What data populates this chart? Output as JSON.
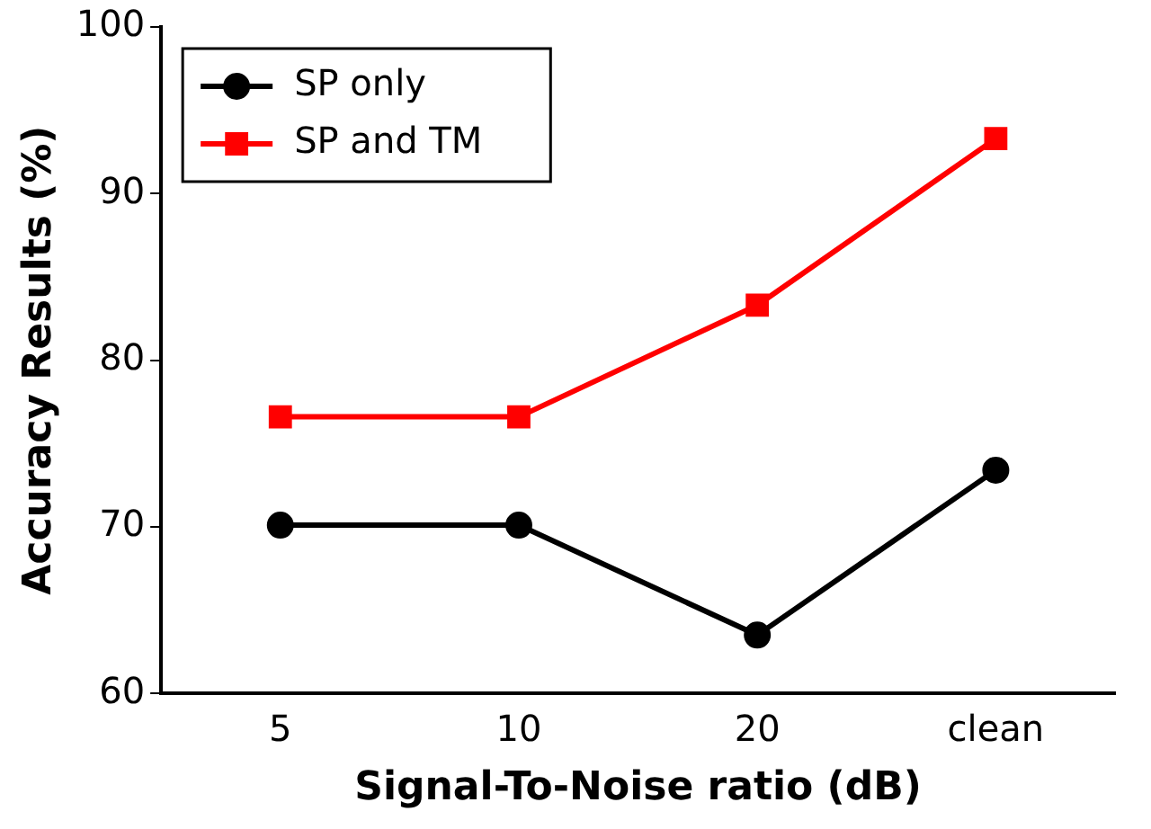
{
  "chart_data": {
    "type": "line",
    "xlabel": "Signal-To-Noise ratio (dB)",
    "ylabel": "Accuracy Results (%)",
    "categories": [
      "5",
      "10",
      "20",
      "clean"
    ],
    "series": [
      {
        "name": "SP only",
        "color": "#000000",
        "marker": "circle",
        "values": [
          70.1,
          70.1,
          63.5,
          73.4
        ]
      },
      {
        "name": "SP and TM",
        "color": "#ff0000",
        "marker": "square",
        "values": [
          76.6,
          76.6,
          83.3,
          93.3
        ]
      }
    ],
    "ylim": [
      60,
      100
    ],
    "yticks": [
      60,
      70,
      80,
      90,
      100
    ],
    "grid": false,
    "legend": "top left",
    "line_style": "solid"
  }
}
